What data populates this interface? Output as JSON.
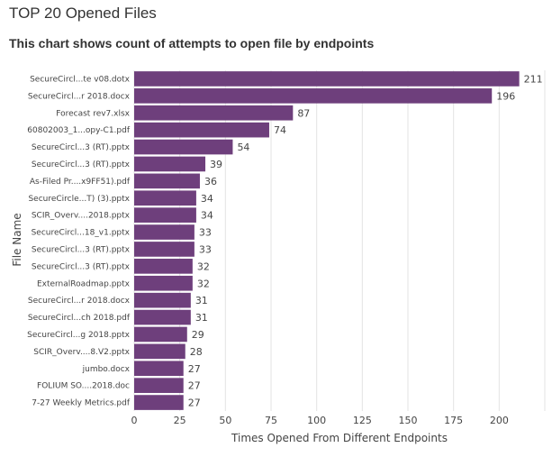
{
  "page": {
    "title": "TOP 20 Opened Files",
    "subtitle": "This chart shows count of attempts to open file by endpoints"
  },
  "chart_data": {
    "type": "bar",
    "orientation": "horizontal",
    "categories": [
      "SecureCircl...te v08.dotx",
      "SecureCircl...r 2018.docx",
      "Forecast rev7.xlsx",
      "60802003_1...opy-C1.pdf",
      "SecureCircl...3 (RT).pptx",
      "SecureCircl...3 (RT).pptx",
      "As-Filed Pr....x9FF51).pdf",
      "SecureCircle...T) (3).pptx",
      "SCIR_Overv....2018.pptx",
      "SecureCircl...18_v1.pptx",
      "SecureCircl...3 (RT).pptx",
      "SecureCircl...3 (RT).pptx",
      "ExternalRoadmap.pptx",
      "SecureCircl...r 2018.docx",
      "SecureCircl...ch 2018.pdf",
      "SecureCircl...g 2018.pptx",
      "SCIR_Overv....8.V2.pptx",
      "jumbo.docx",
      "FOLIUM SO....2018.doc",
      "7-27 Weekly Metrics.pdf"
    ],
    "values": [
      211,
      196,
      87,
      74,
      54,
      39,
      36,
      34,
      34,
      33,
      33,
      32,
      32,
      31,
      31,
      29,
      28,
      27,
      27,
      27
    ],
    "xlabel": "Times Opened From Different Endpoints",
    "ylabel": "File Name",
    "xlim": [
      0,
      225
    ],
    "xticks": [
      0,
      25,
      50,
      75,
      100,
      125,
      150,
      175,
      200
    ],
    "grid": true,
    "bar_color": "#6e3f7c"
  }
}
